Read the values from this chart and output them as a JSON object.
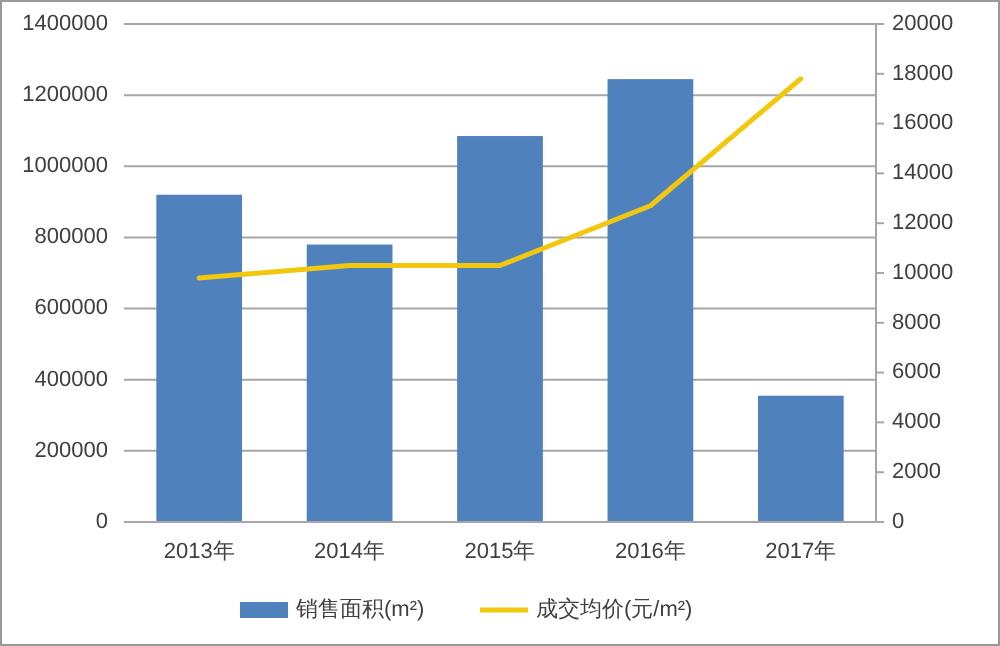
{
  "chart_data": {
    "type": "bar",
    "categories": [
      "2013年",
      "2014年",
      "2015年",
      "2016年",
      "2017年"
    ],
    "series": [
      {
        "name": "销售面积(m²)",
        "color": "#4f81bd",
        "values": [
          920000,
          780000,
          1085000,
          1245000,
          355000
        ]
      },
      {
        "name": "成交均价(元/m²)",
        "type": "line",
        "axis": "y2",
        "color": "#f2c80f",
        "values": [
          9800,
          10300,
          10300,
          12700,
          17800
        ]
      }
    ],
    "ylim": [
      0,
      1400000
    ],
    "yticks": [
      0,
      200000,
      400000,
      600000,
      800000,
      1000000,
      1200000,
      1400000
    ],
    "y2lim": [
      0,
      20000
    ],
    "y2ticks": [
      0,
      2000,
      4000,
      6000,
      8000,
      10000,
      12000,
      14000,
      16000,
      18000,
      20000
    ],
    "grid": "y",
    "legend": "bottom",
    "marker": "none"
  }
}
